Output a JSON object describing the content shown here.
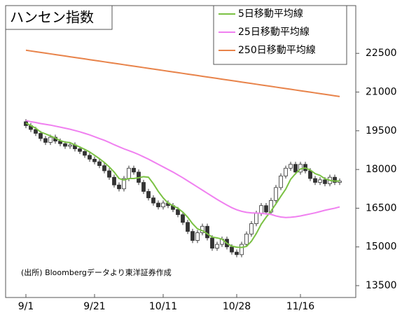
{
  "chart_data": {
    "type": "candlestick",
    "title": "ハンセン指数",
    "note": "(出所) Bloombergデータより東洋証券作成",
    "categories": [
      "9/1",
      null,
      null,
      null,
      null,
      null,
      null,
      null,
      null,
      null,
      null,
      null,
      null,
      null,
      "9/21",
      null,
      null,
      null,
      null,
      null,
      null,
      null,
      null,
      null,
      null,
      null,
      null,
      null,
      "10/11",
      null,
      null,
      null,
      null,
      null,
      null,
      null,
      null,
      null,
      null,
      null,
      null,
      null,
      null,
      "10/28",
      null,
      null,
      null,
      null,
      null,
      null,
      null,
      null,
      null,
      null,
      null,
      null,
      "11/16",
      null,
      null,
      null,
      null,
      null,
      null,
      null,
      null
    ],
    "open": [
      19850,
      19700,
      19550,
      19400,
      19200,
      19050,
      19250,
      19100,
      19000,
      18900,
      18950,
      18800,
      18700,
      18550,
      18400,
      18300,
      18150,
      17950,
      17700,
      17400,
      17250,
      17650,
      18050,
      17900,
      17500,
      17150,
      16900,
      16700,
      16550,
      16700,
      16600,
      16450,
      16250,
      15950,
      15600,
      15250,
      15550,
      15800,
      15350,
      14950,
      15100,
      15300,
      15000,
      14800,
      14700,
      15100,
      15500,
      15900,
      16300,
      16600,
      16350,
      16800,
      17300,
      17750,
      18050,
      18200,
      17900,
      18200,
      17950,
      17650,
      17500,
      17600,
      17450,
      17700,
      17500
    ],
    "high": [
      19950,
      19800,
      19650,
      19500,
      19300,
      19350,
      19350,
      19200,
      19100,
      19050,
      19050,
      18900,
      18800,
      18650,
      18500,
      18400,
      18250,
      18050,
      17800,
      17500,
      17750,
      18150,
      18150,
      18000,
      17600,
      17250,
      17000,
      16800,
      16800,
      16800,
      16700,
      16550,
      16350,
      16050,
      15700,
      15650,
      15900,
      15900,
      15450,
      15200,
      15400,
      15400,
      15100,
      14900,
      15200,
      15600,
      16000,
      16400,
      16700,
      16700,
      16900,
      17400,
      17850,
      18150,
      18300,
      18300,
      18300,
      18300,
      18050,
      17750,
      17700,
      17700,
      17800,
      17800,
      17650
    ],
    "low": [
      19600,
      19450,
      19300,
      19100,
      18950,
      18950,
      19000,
      18900,
      18800,
      18800,
      18700,
      18600,
      18450,
      18300,
      18200,
      18050,
      17850,
      17600,
      17300,
      17150,
      17150,
      17550,
      17800,
      17400,
      17050,
      16800,
      16600,
      16450,
      16450,
      16500,
      16350,
      16150,
      15850,
      15500,
      15150,
      15150,
      15450,
      15250,
      14850,
      14850,
      15000,
      14900,
      14700,
      14600,
      14600,
      15000,
      15400,
      15800,
      16200,
      16250,
      16250,
      16700,
      17200,
      17650,
      17950,
      17800,
      17800,
      17850,
      17550,
      17400,
      17400,
      17350,
      17350,
      17400,
      17400
    ],
    "close": [
      19700,
      19550,
      19400,
      19200,
      19050,
      19250,
      19100,
      19000,
      18900,
      18950,
      18800,
      18700,
      18550,
      18400,
      18300,
      18150,
      17950,
      17700,
      17400,
      17250,
      17650,
      18050,
      17900,
      17500,
      17150,
      16900,
      16700,
      16550,
      16700,
      16600,
      16450,
      16250,
      15950,
      15600,
      15250,
      15550,
      15800,
      15350,
      14950,
      15100,
      15300,
      15000,
      14800,
      14700,
      15100,
      15500,
      15900,
      16300,
      16600,
      16350,
      16800,
      17300,
      17750,
      18050,
      18200,
      17900,
      18200,
      17950,
      17650,
      17500,
      17600,
      17450,
      17700,
      17500,
      17550
    ],
    "up_color": "#ffffff",
    "down_color": "#333333",
    "lines": [
      {
        "name": "5日移動平均線",
        "color": "#7ac143",
        "values": [
          19800,
          19700,
          19600,
          19450,
          19380,
          19300,
          19220,
          19120,
          19060,
          19040,
          18950,
          18870,
          18780,
          18680,
          18550,
          18420,
          18270,
          18100,
          17900,
          17650,
          17590,
          17650,
          17650,
          17680,
          17720,
          17700,
          17450,
          17150,
          16900,
          16700,
          16600,
          16500,
          16350,
          16150,
          15900,
          15700,
          15630,
          15510,
          15380,
          15350,
          15300,
          15140,
          15030,
          14990,
          14980,
          15020,
          15220,
          15520,
          15880,
          16150,
          16390,
          16670,
          16960,
          17240,
          17620,
          17840,
          18020,
          18060,
          17980,
          17840,
          17770,
          17640,
          17580,
          17550,
          17560
        ]
      },
      {
        "name": "25日移動平均線",
        "color": "#f080f0",
        "values": [
          19900,
          19850,
          19820,
          19780,
          19750,
          19720,
          19680,
          19640,
          19600,
          19560,
          19510,
          19460,
          19400,
          19340,
          19270,
          19200,
          19130,
          19050,
          18960,
          18880,
          18800,
          18730,
          18660,
          18580,
          18490,
          18400,
          18300,
          18200,
          18100,
          18000,
          17900,
          17790,
          17680,
          17560,
          17440,
          17320,
          17200,
          17080,
          16960,
          16840,
          16730,
          16620,
          16520,
          16440,
          16380,
          16340,
          16320,
          16310,
          16300,
          16280,
          16260,
          16200,
          16160,
          16140,
          16150,
          16170,
          16200,
          16240,
          16280,
          16320,
          16370,
          16420,
          16460,
          16500,
          16550
        ]
      },
      {
        "name": "250日移動平均線",
        "color": "#e8834a",
        "values": [
          22620,
          22592,
          22564,
          22536,
          22508,
          22480,
          22452,
          22424,
          22396,
          22368,
          22340,
          22312,
          22284,
          22256,
          22228,
          22200,
          22172,
          22144,
          22116,
          22088,
          22060,
          22032,
          22004,
          21976,
          21948,
          21920,
          21892,
          21864,
          21836,
          21808,
          21780,
          21752,
          21724,
          21696,
          21668,
          21640,
          21612,
          21584,
          21556,
          21528,
          21500,
          21472,
          21444,
          21416,
          21388,
          21360,
          21332,
          21304,
          21276,
          21248,
          21220,
          21192,
          21164,
          21136,
          21108,
          21080,
          21052,
          21024,
          20996,
          20968,
          20940,
          20912,
          20884,
          20856,
          20828
        ]
      }
    ],
    "ylim": [
      13040,
      24350
    ],
    "yticks": [
      13500,
      15000,
      16500,
      18000,
      19500,
      21000,
      22500
    ]
  }
}
